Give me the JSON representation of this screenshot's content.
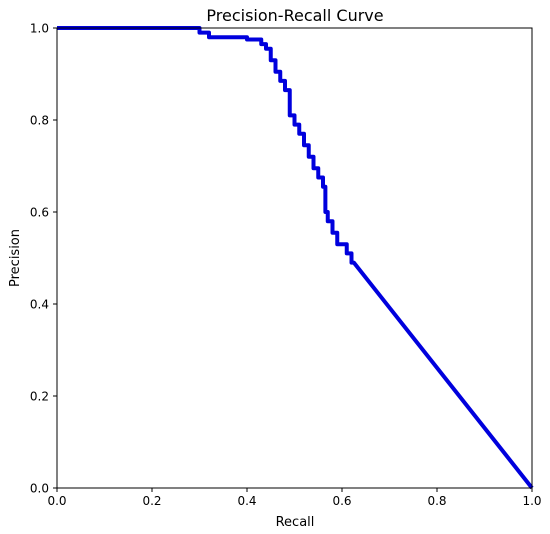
{
  "chart_data": {
    "type": "line",
    "title": "Precision-Recall Curve",
    "xlabel": "Recall",
    "ylabel": "Precision",
    "xlim": [
      0.0,
      1.0
    ],
    "ylim": [
      0.0,
      1.0
    ],
    "xticks": [
      "0.0",
      "0.2",
      "0.4",
      "0.6",
      "0.8",
      "1.0"
    ],
    "yticks": [
      "0.0",
      "0.2",
      "0.4",
      "0.6",
      "0.8",
      "1.0"
    ],
    "grid": false,
    "series": [
      {
        "color": "#0000dd",
        "x": [
          0.0,
          0.3,
          0.3,
          0.32,
          0.32,
          0.4,
          0.4,
          0.43,
          0.43,
          0.44,
          0.44,
          0.45,
          0.45,
          0.46,
          0.46,
          0.47,
          0.47,
          0.48,
          0.48,
          0.49,
          0.49,
          0.5,
          0.5,
          0.51,
          0.51,
          0.52,
          0.52,
          0.53,
          0.53,
          0.54,
          0.54,
          0.55,
          0.55,
          0.56,
          0.56,
          0.565,
          0.565,
          0.57,
          0.57,
          0.58,
          0.58,
          0.59,
          0.59,
          0.6,
          0.6,
          0.61,
          0.61,
          0.62,
          0.62,
          0.625,
          0.625,
          1.0
        ],
        "y": [
          1.0,
          1.0,
          0.99,
          0.99,
          0.98,
          0.98,
          0.975,
          0.975,
          0.965,
          0.965,
          0.955,
          0.955,
          0.93,
          0.93,
          0.905,
          0.905,
          0.885,
          0.885,
          0.865,
          0.865,
          0.81,
          0.81,
          0.79,
          0.79,
          0.77,
          0.77,
          0.745,
          0.745,
          0.72,
          0.72,
          0.695,
          0.695,
          0.675,
          0.675,
          0.655,
          0.655,
          0.6,
          0.6,
          0.58,
          0.58,
          0.555,
          0.555,
          0.53,
          0.53,
          0.53,
          0.53,
          0.51,
          0.51,
          0.49,
          0.49,
          0.49,
          0.0
        ]
      }
    ]
  }
}
